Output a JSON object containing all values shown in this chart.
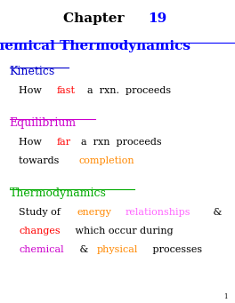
{
  "bg_color": "#ffffff",
  "title_fs": 11,
  "heading_fs": 9,
  "body_fs": 8,
  "page_num_fs": 5,
  "sections": [
    {
      "heading_text": "Kinetics",
      "heading_color": "#0000cc",
      "body_lines": [
        [
          {
            "text": "How  ",
            "color": "#000000"
          },
          {
            "text": "fast",
            "color": "#ff0000"
          },
          {
            "text": "  a  rxn.  proceeds",
            "color": "#000000"
          }
        ]
      ]
    },
    {
      "heading_text": "Equilibrium",
      "heading_color": "#cc00cc",
      "body_lines": [
        [
          {
            "text": "How  ",
            "color": "#000000"
          },
          {
            "text": "far",
            "color": "#ff0000"
          },
          {
            "text": "  a  rxn  proceeds",
            "color": "#000000"
          }
        ],
        [
          {
            "text": "towards  ",
            "color": "#000000"
          },
          {
            "text": "completion",
            "color": "#ff8800"
          }
        ]
      ]
    },
    {
      "heading_text": "Thermodynamics",
      "heading_color": "#00aa00",
      "body_lines": [
        [
          {
            "text": "Study of ",
            "color": "#000000"
          },
          {
            "text": "energy",
            "color": "#ff8800"
          },
          {
            "text": " ",
            "color": "#000000"
          },
          {
            "text": "relationships",
            "color": "#ff66ff"
          },
          {
            "text": " &",
            "color": "#000000"
          }
        ],
        [
          {
            "text": "changes",
            "color": "#ff0000"
          },
          {
            "text": " which occur during",
            "color": "#000000"
          }
        ],
        [
          {
            "text": "chemical",
            "color": "#cc00cc"
          },
          {
            "text": " & ",
            "color": "#000000"
          },
          {
            "text": "physical",
            "color": "#ff8800"
          },
          {
            "text": " processes",
            "color": "#000000"
          }
        ]
      ]
    }
  ]
}
